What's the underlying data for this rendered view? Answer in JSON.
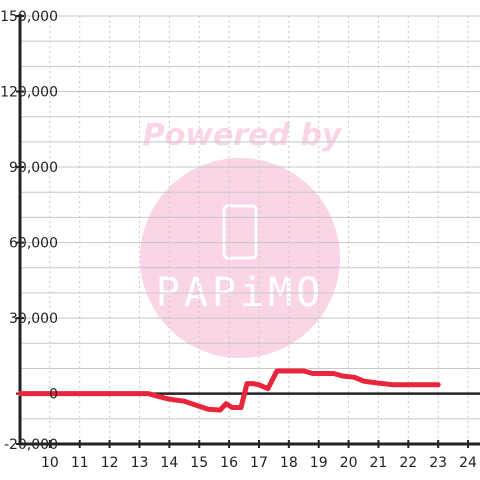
{
  "chart_data": {
    "type": "line",
    "title": "",
    "xlabel": "",
    "ylabel": "",
    "xlim": [
      9.0,
      24.4
    ],
    "ylim": [
      -20000,
      150000
    ],
    "y_ticks": [
      -20000,
      0,
      30000,
      60000,
      90000,
      120000,
      150000
    ],
    "y_tick_labels": [
      "-20,000",
      "0",
      "30,000",
      "60,000",
      "90,000",
      "120,000",
      "150,000"
    ],
    "x_ticks": [
      10,
      11,
      12,
      13,
      14,
      15,
      16,
      17,
      18,
      19,
      20,
      21,
      22,
      23,
      24
    ],
    "x_tick_labels": [
      "10",
      "11",
      "12",
      "13",
      "14",
      "15",
      "16",
      "17",
      "18",
      "19",
      "20",
      "21",
      "22",
      "23",
      "24"
    ],
    "grid": true,
    "series": [
      {
        "x": [
          9.0,
          10,
          11,
          12,
          13,
          13.3,
          13.6,
          14.0,
          14.5,
          15.0,
          15.3,
          15.7,
          15.9,
          16.1,
          16.4,
          16.6,
          16.8,
          17.0,
          17.3,
          17.6,
          17.8,
          18.1,
          18.5,
          18.8,
          19.2,
          19.5,
          19.8,
          20.2,
          20.5,
          21.0,
          21.5,
          22.0,
          22.5,
          23.0
        ],
        "y": [
          0,
          0,
          0,
          0,
          0,
          0,
          -1000,
          -2200,
          -3000,
          -5000,
          -6200,
          -6500,
          -4000,
          -5500,
          -5500,
          4000,
          4000,
          3500,
          2000,
          9000,
          9000,
          9000,
          9000,
          8000,
          8000,
          8000,
          7000,
          6500,
          5000,
          4200,
          3500,
          3500,
          3500,
          3500
        ],
        "color": "#e8253b"
      }
    ]
  },
  "watermark": {
    "line1": "Powered by",
    "line2": "PAPiMO",
    "color": "#f8c8e0"
  },
  "colors": {
    "axis": "#222222",
    "grid": "#c8c8c8",
    "line": "#e8253b",
    "zero_line": "#222222"
  }
}
